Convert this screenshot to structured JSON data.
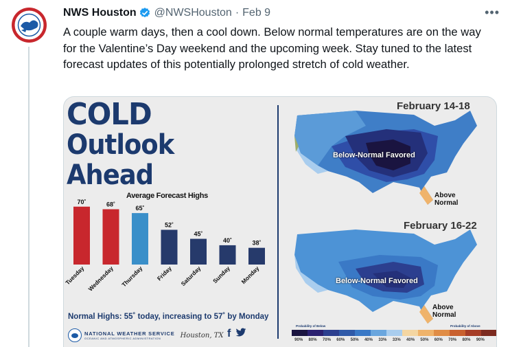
{
  "tweet": {
    "name": "NWS Houston",
    "handle": "@NWSHouston",
    "separator": "·",
    "date": "Feb 9",
    "more": "•••",
    "text": "A couple warm days, then a cool down. Below normal temperatures are on the way for the Valentine’s Day weekend and the upcoming week. Stay tuned to the latest forecast updates of this potentially prolonged stretch of cold weather."
  },
  "graphic": {
    "title_line1": "COLD",
    "title_line2": "Outlook",
    "title_line3": "Ahead",
    "chart_title": "Average Forecast Highs",
    "normal_highs": "Normal Highs:  55˚ today, increasing to 57˚ by Monday",
    "agency": "NATIONAL WEATHER SERVICE",
    "agency_sub": "OCEANIC AND ATMOSPHERIC ADMINISTRATION",
    "office": "Houston, TX",
    "social": "f🐦",
    "map1": {
      "title": "February 14-18",
      "label_main": "Below-Normal Favored",
      "label_above_1": "Above",
      "label_above_2": "Normal"
    },
    "map2": {
      "title": "February 16-22",
      "label_main": "Below-Normal Favored",
      "label_above_1": "Above",
      "label_above_2": "Normal"
    },
    "prob_below_label": "Probability of Below",
    "prob_above_label": "Probability of Above",
    "prob_scale": [
      "90%",
      "80%",
      "70%",
      "60%",
      "50%",
      "40%",
      "33%",
      "33%",
      "40%",
      "50%",
      "60%",
      "70%",
      "80%",
      "90%"
    ],
    "prob_colors": [
      "#1a1440",
      "#2b2070",
      "#2c3f8f",
      "#2f5aa8",
      "#3a79c6",
      "#6aa6de",
      "#a9cdee",
      "#f4d6a2",
      "#efb36b",
      "#e08d46",
      "#c9612f",
      "#a63d27",
      "#7c2a1f",
      "#4d1711"
    ]
  },
  "chart_data": {
    "type": "bar",
    "title": "Average Forecast Highs",
    "categories": [
      "Tuesday",
      "Wednesday",
      "Thursday",
      "Friday",
      "Saturday",
      "Sunday",
      "Monday"
    ],
    "values": [
      70,
      68,
      65,
      52,
      45,
      40,
      38
    ],
    "value_labels": [
      "70˚",
      "68˚",
      "65˚",
      "52˚",
      "45˚",
      "40˚",
      "38˚"
    ],
    "colors": [
      "#c8272d",
      "#c8272d",
      "#3a8fc9",
      "#263a6b",
      "#263a6b",
      "#263a6b",
      "#263a6b"
    ],
    "ylim": [
      25,
      72
    ]
  }
}
